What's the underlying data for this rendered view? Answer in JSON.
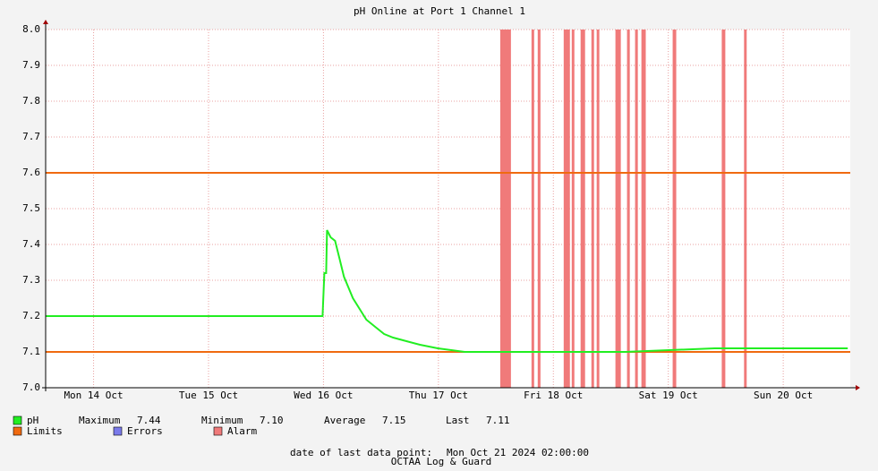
{
  "chart_data": {
    "type": "line",
    "title": "pH Online at Port 1 Channel 1",
    "xlim": [
      14.083,
      21.083
    ],
    "xticks": [
      {
        "value": 14.5,
        "label": "Mon 14 Oct"
      },
      {
        "value": 15.5,
        "label": "Tue 15 Oct"
      },
      {
        "value": 16.5,
        "label": "Wed 16 Oct"
      },
      {
        "value": 17.5,
        "label": "Thu 17 Oct"
      },
      {
        "value": 18.5,
        "label": "Fri 18 Oct"
      },
      {
        "value": 19.5,
        "label": "Sat 19 Oct"
      },
      {
        "value": 20.5,
        "label": "Sun 20 Oct"
      }
    ],
    "ylim": [
      7.0,
      8.0
    ],
    "yticks": [
      {
        "value": 7.0,
        "label": "7.0"
      },
      7.1,
      7.2,
      7.3,
      7.4,
      7.5,
      7.6,
      7.7,
      7.8,
      7.9,
      {
        "value": 8.0,
        "label": "8.0"
      }
    ],
    "grid": true,
    "series": [
      {
        "name": "pH",
        "color": "#22ee22",
        "x": [
          14.083,
          14.464,
          14.853,
          15.241,
          15.63,
          16.018,
          16.407,
          16.492,
          16.508,
          16.523,
          16.531,
          16.562,
          16.601,
          16.64,
          16.678,
          16.717,
          16.756,
          16.795,
          16.873,
          16.95,
          17.028,
          17.106,
          17.222,
          17.339,
          17.494,
          17.728,
          18.349,
          19.126,
          19.903,
          20.291,
          20.68,
          21.061
        ],
        "values": [
          7.2,
          7.2,
          7.2,
          7.2,
          7.2,
          7.2,
          7.2,
          7.2,
          7.32,
          7.32,
          7.44,
          7.42,
          7.41,
          7.36,
          7.31,
          7.28,
          7.25,
          7.23,
          7.19,
          7.17,
          7.15,
          7.14,
          7.13,
          7.12,
          7.11,
          7.1,
          7.1,
          7.1,
          7.11,
          7.11,
          7.11,
          7.11
        ]
      }
    ],
    "limits": {
      "name": "Limits",
      "color": "#f06a10",
      "values": [
        7.1,
        7.6
      ]
    },
    "errors": {
      "name": "Errors",
      "color": "#7a7aea"
    },
    "alarms": {
      "name": "Alarm",
      "color": "#f07a7a",
      "spans": [
        [
          18.038,
          18.131
        ],
        [
          18.31,
          18.333
        ],
        [
          18.364,
          18.388
        ],
        [
          18.59,
          18.644
        ],
        [
          18.66,
          18.683
        ],
        [
          18.737,
          18.776
        ],
        [
          18.831,
          18.854
        ],
        [
          18.877,
          18.9
        ],
        [
          19.04,
          19.087
        ],
        [
          19.141,
          19.165
        ],
        [
          19.211,
          19.235
        ],
        [
          19.266,
          19.304
        ],
        [
          19.538,
          19.569
        ],
        [
          19.965,
          19.996
        ],
        [
          20.159,
          20.182
        ]
      ]
    },
    "stats": [
      {
        "label": "Maximum",
        "value": "7.44"
      },
      {
        "label": "Minimum",
        "value": "7.10"
      },
      {
        "label": "Average",
        "value": "7.15"
      },
      {
        "label": "Last",
        "value": "7.11"
      }
    ],
    "footer": {
      "label": "date of last data point:",
      "value": "Mon Oct 21 2024 02:00:00"
    },
    "watermark": "OCTAA Log & Guard"
  }
}
